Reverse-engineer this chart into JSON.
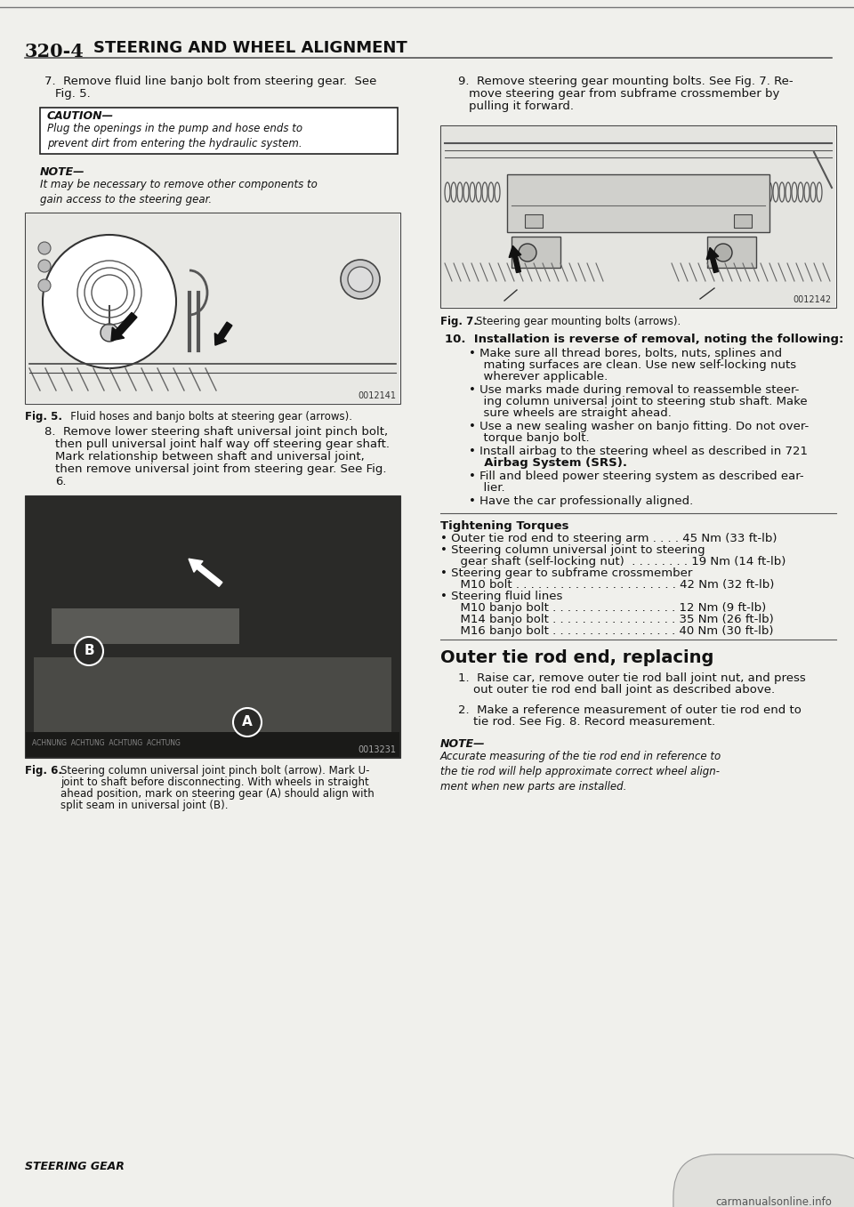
{
  "page_number": "320-4",
  "section_title": "STEERING AND WHEEL ALIGNMENT",
  "bg_color": "#f0f0ec",
  "text_color": "#111111",
  "step7_text_line1": "7.  Remove fluid line banjo bolt from steering gear.  See",
  "step7_text_line2": "    Fig. 5.",
  "caution_title": "CAUTION—",
  "caution_body": "Plug the openings in the pump and hose ends to\nprevent dirt from entering the hydraulic system.",
  "note1_title": "NOTE—",
  "note1_body": "It may be necessary to remove other components to\ngain access to the steering gear.",
  "fig5_caption_bold": "Fig. 5.",
  "fig5_caption_normal": "   Fluid hoses and banjo bolts at steering gear (arrows).",
  "step8_lines": [
    "8.  Remove lower steering shaft universal joint pinch bolt,",
    "    then pull universal joint half way off steering gear shaft.",
    "    Mark relationship between shaft and universal joint,",
    "    then remove universal joint from steering gear. See Fig.",
    "    6."
  ],
  "fig6_caption_bold": "Fig. 6.",
  "fig6_caption_normal": "  Steering column universal joint pinch bolt (arrow). Mark U-\njoint to shaft before disconnecting. With wheels in straight\nahead position, mark on steering gear (A) should align with\nsplit seam in universal joint (B).",
  "step9_lines": [
    "9.  Remove steering gear mounting bolts. See Fig. 7. Re-",
    "    move steering gear from subframe crossmember by",
    "    pulling it forward."
  ],
  "fig7_caption_bold": "Fig. 7.",
  "fig7_caption_normal": "   Steering gear mounting bolts (arrows).",
  "step10_title": "10.  Installation is reverse of removal, noting the following:",
  "step10_bullets": [
    [
      "Make sure all thread bores, bolts, nuts, splines and",
      "mating surfaces are clean. Use new self-locking nuts",
      "wherever applicable."
    ],
    [
      "Use marks made during removal to reassemble steer-",
      "ing column universal joint to steering stub shaft. Make",
      "sure wheels are straight ahead."
    ],
    [
      "Use a new sealing washer on banjo fitting. Do not over-",
      "torque banjo bolt."
    ],
    [
      "Install airbag to the steering wheel as described in ",
      "721",
      " Airbag System (SRS)."
    ],
    [
      "Fill and bleed power steering system as described ear-",
      "lier."
    ],
    [
      "Have the car professionally aligned."
    ]
  ],
  "step10_bullets_flat": [
    "Make sure all thread bores, bolts, nuts, splines and mating surfaces are clean. Use new self-locking nuts wherever applicable.",
    "Use marks made during removal to reassemble steer-ing column universal joint to steering stub shaft. Make sure wheels are straight ahead.",
    "Use a new sealing washer on banjo fitting. Do not over-torque banjo bolt.",
    "Install airbag to the steering wheel as described in 721\nAirbag System (SRS).",
    "Fill and bleed power steering system as described ear-lier.",
    "Have the car professionally aligned."
  ],
  "tightening_title": "Tightening Torques",
  "tightening_lines": [
    "• Outer tie rod end to steering arm . . . . 45 Nm (33 ft-lb)",
    "• Steering column universal joint to steering",
    "  gear shaft (self-locking nut)  . . . . . . . . 19 Nm (14 ft-lb)",
    "• Steering gear to subframe crossmember",
    "  M10 bolt . . . . . . . . . . . . . . . . . . . . . . 42 Nm (32 ft-lb)",
    "• Steering fluid lines",
    "  M10 banjo bolt . . . . . . . . . . . . . . . . . 12 Nm (9 ft-lb)",
    "  M14 banjo bolt . . . . . . . . . . . . . . . . . 35 Nm (26 ft-lb)",
    "  M16 banjo bolt . . . . . . . . . . . . . . . . . 40 Nm (30 ft-lb)"
  ],
  "outer_title": "Outer tie rod end, replacing",
  "outer_step1_lines": [
    "1.  Raise car, remove outer tie rod ball joint nut, and press",
    "    out outer tie rod end ball joint as described above."
  ],
  "outer_step2_lines": [
    "2.  Make a reference measurement of outer tie rod end to",
    "    tie rod. See Fig. 8. Record measurement."
  ],
  "note2_title": "NOTE—",
  "note2_body": "Accurate measuring of the tie rod end in reference to\nthe tie rod will help approximate correct wheel align-\nment when new parts are installed.",
  "steering_gear_label": "STEERING GEAR",
  "watermark": "carmanualsonline.info",
  "fig5_code": "0012141",
  "fig6_code": "0013231",
  "fig7_code": "0012142"
}
